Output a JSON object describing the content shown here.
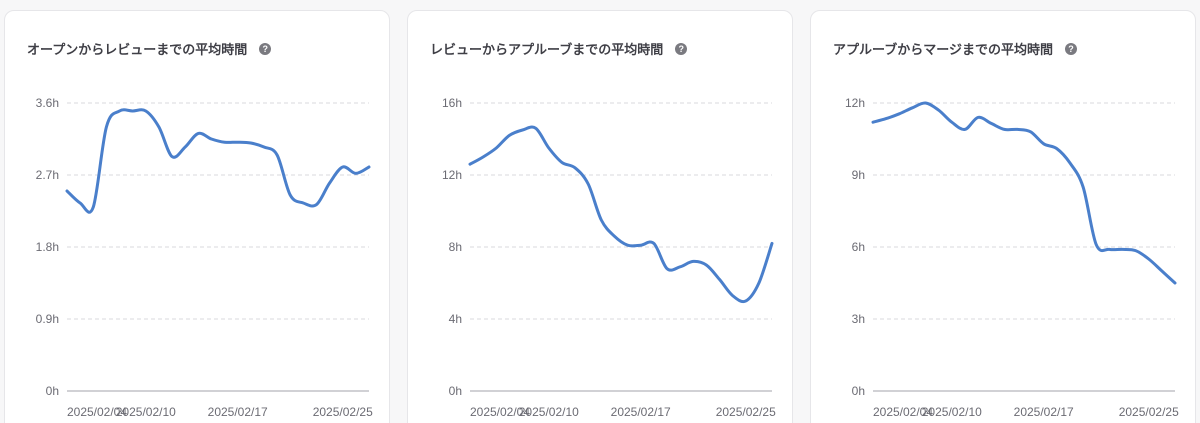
{
  "colors": {
    "line": "#4a7fcb",
    "grid": "#d9d9de",
    "axis": "#a3a3ab",
    "tick_text": "#6b6b73"
  },
  "help_icon_glyph": "?",
  "chart_data": [
    {
      "type": "line",
      "title": "オープンからレビューまでの平均時間",
      "yticks": [
        "3.6h",
        "2.7h",
        "1.8h",
        "0.9h",
        "0h"
      ],
      "ytick_values": [
        3.6,
        2.7,
        1.8,
        0.9,
        0
      ],
      "ylim": [
        0,
        3.6
      ],
      "xlim": [
        "2025/02/04",
        "2025/02/27"
      ],
      "xticks": [
        {
          "label": "2025/02/04",
          "date": "2025/02/04"
        },
        {
          "label": "2025/02/10",
          "date": "2025/02/10"
        },
        {
          "label": "2025/02/17",
          "date": "2025/02/17"
        },
        {
          "label": "2025/02/25",
          "date": "2025/02/25"
        }
      ],
      "grid": true,
      "series": [
        {
          "x": [
            "2025/02/04",
            "2025/02/05",
            "2025/02/06",
            "2025/02/07",
            "2025/02/08",
            "2025/02/09",
            "2025/02/10",
            "2025/02/11",
            "2025/02/12",
            "2025/02/13",
            "2025/02/14",
            "2025/02/15",
            "2025/02/16",
            "2025/02/17",
            "2025/02/18",
            "2025/02/19",
            "2025/02/20",
            "2025/02/21",
            "2025/02/22",
            "2025/02/23",
            "2025/02/24",
            "2025/02/25",
            "2025/02/26",
            "2025/02/27"
          ],
          "y": [
            2.5,
            2.35,
            2.3,
            3.3,
            3.5,
            3.5,
            3.5,
            3.3,
            2.93,
            3.05,
            3.22,
            3.15,
            3.11,
            3.11,
            3.1,
            3.05,
            2.95,
            2.45,
            2.35,
            2.33,
            2.6,
            2.8,
            2.72,
            2.8
          ]
        }
      ]
    },
    {
      "type": "line",
      "title": "レビューからアプルーブまでの平均時間",
      "yticks": [
        "16h",
        "12h",
        "8h",
        "4h",
        "0h"
      ],
      "ytick_values": [
        16,
        12,
        8,
        4,
        0
      ],
      "ylim": [
        0,
        16
      ],
      "xlim": [
        "2025/02/04",
        "2025/02/27"
      ],
      "xticks": [
        {
          "label": "2025/02/04",
          "date": "2025/02/04"
        },
        {
          "label": "2025/02/10",
          "date": "2025/02/10"
        },
        {
          "label": "2025/02/17",
          "date": "2025/02/17"
        },
        {
          "label": "2025/02/25",
          "date": "2025/02/25"
        }
      ],
      "grid": true,
      "series": [
        {
          "x": [
            "2025/02/04",
            "2025/02/05",
            "2025/02/06",
            "2025/02/07",
            "2025/02/08",
            "2025/02/09",
            "2025/02/10",
            "2025/02/11",
            "2025/02/12",
            "2025/02/13",
            "2025/02/14",
            "2025/02/15",
            "2025/02/16",
            "2025/02/17",
            "2025/02/18",
            "2025/02/19",
            "2025/02/20",
            "2025/02/21",
            "2025/02/22",
            "2025/02/23",
            "2025/02/24",
            "2025/02/25",
            "2025/02/26",
            "2025/02/27"
          ],
          "y": [
            12.6,
            13.0,
            13.5,
            14.2,
            14.5,
            14.6,
            13.5,
            12.7,
            12.4,
            11.5,
            9.5,
            8.6,
            8.1,
            8.1,
            8.2,
            6.8,
            6.9,
            7.2,
            7.0,
            6.2,
            5.3,
            5.0,
            6.0,
            8.2
          ]
        }
      ]
    },
    {
      "type": "line",
      "title": "アプルーブからマージまでの平均時間",
      "yticks": [
        "12h",
        "9h",
        "6h",
        "3h",
        "0h"
      ],
      "ytick_values": [
        12,
        9,
        6,
        3,
        0
      ],
      "ylim": [
        0,
        12
      ],
      "xlim": [
        "2025/02/04",
        "2025/02/27"
      ],
      "xticks": [
        {
          "label": "2025/02/04",
          "date": "2025/02/04"
        },
        {
          "label": "2025/02/10",
          "date": "2025/02/10"
        },
        {
          "label": "2025/02/17",
          "date": "2025/02/17"
        },
        {
          "label": "2025/02/25",
          "date": "2025/02/25"
        }
      ],
      "grid": true,
      "series": [
        {
          "x": [
            "2025/02/04",
            "2025/02/05",
            "2025/02/06",
            "2025/02/07",
            "2025/02/08",
            "2025/02/09",
            "2025/02/10",
            "2025/02/11",
            "2025/02/12",
            "2025/02/13",
            "2025/02/14",
            "2025/02/15",
            "2025/02/16",
            "2025/02/17",
            "2025/02/18",
            "2025/02/19",
            "2025/02/20",
            "2025/02/21",
            "2025/02/22",
            "2025/02/23",
            "2025/02/24",
            "2025/02/25",
            "2025/02/26",
            "2025/02/27"
          ],
          "y": [
            11.2,
            11.35,
            11.55,
            11.8,
            12.0,
            11.7,
            11.2,
            10.9,
            11.4,
            11.15,
            10.9,
            10.9,
            10.8,
            10.3,
            10.1,
            9.5,
            8.5,
            6.1,
            5.9,
            5.9,
            5.85,
            5.5,
            5.0,
            4.5
          ]
        }
      ]
    }
  ]
}
